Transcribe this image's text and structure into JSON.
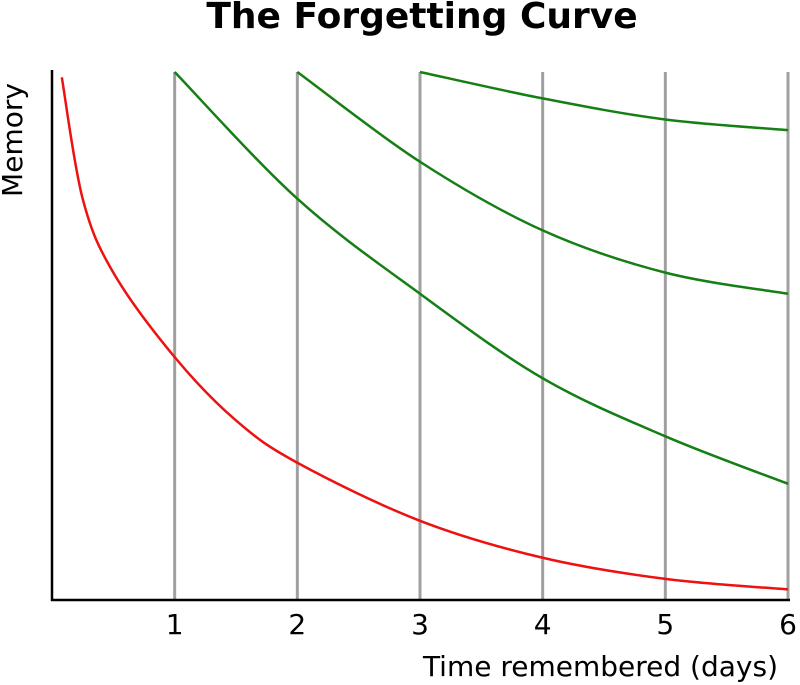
{
  "chart_data": {
    "type": "line",
    "title": "The Forgetting Curve",
    "x_label": "Time remembered (days)",
    "y_label": "Memory",
    "xlim": [
      0,
      6
    ],
    "xticks": [
      1,
      2,
      3,
      4,
      5,
      6
    ],
    "ylim": [
      0,
      100
    ],
    "grid": true,
    "grid_color": "#a0a0a0",
    "series": [
      {
        "color": "#ee1111",
        "x": [
          0.08,
          0.25,
          0.5,
          1,
          1.5,
          2,
          3,
          4,
          5,
          6
        ],
        "values": [
          99,
          76,
          62,
          46,
          34,
          26,
          15,
          8,
          4,
          2
        ]
      },
      {
        "color": "#157f15",
        "x": [
          1,
          2,
          3,
          4,
          5,
          6
        ],
        "values": [
          100,
          76,
          58,
          42,
          31,
          22
        ]
      },
      {
        "color": "#157f15",
        "x": [
          2,
          3,
          4,
          5,
          6
        ],
        "values": [
          100,
          83,
          70,
          62,
          58
        ]
      },
      {
        "color": "#157f15",
        "x": [
          3,
          4,
          5,
          6
        ],
        "values": [
          100,
          95,
          91,
          89
        ]
      }
    ]
  }
}
